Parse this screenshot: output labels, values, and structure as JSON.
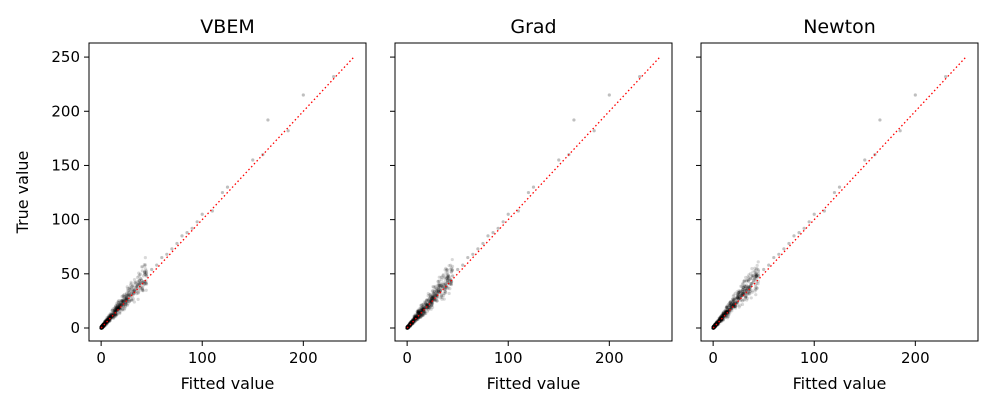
{
  "chart_data": [
    {
      "type": "scatter",
      "title": "VBEM",
      "xlabel": "Fitted value",
      "ylabel": "True value",
      "xlim": [
        -12,
        262
      ],
      "ylim": [
        -12,
        263
      ],
      "xticks": [
        0,
        100,
        200
      ],
      "yticks": [
        0,
        50,
        100,
        150,
        200,
        250
      ],
      "grid": false,
      "point_color": "#000000",
      "point_alpha": 0.15,
      "reference_line": {
        "style": "dotted",
        "color": "#ff0000",
        "from": [
          0,
          0
        ],
        "to": [
          250,
          250
        ]
      },
      "series": [
        {
          "x": [
            0.5,
            1,
            2,
            3,
            4,
            5,
            6,
            7,
            8,
            9,
            10,
            12,
            14,
            16,
            18,
            20,
            22,
            25,
            28,
            30,
            33,
            35,
            38,
            40,
            45,
            50,
            55,
            60,
            65,
            70,
            75,
            80,
            85,
            90,
            95,
            100,
            110,
            120,
            125,
            150,
            160,
            165,
            185,
            200,
            230
          ],
          "y": [
            0.5,
            1.5,
            2,
            3.5,
            5,
            6,
            7,
            8,
            9,
            10,
            11,
            13,
            15,
            17,
            19,
            21,
            23,
            27,
            30,
            32,
            35,
            38,
            41,
            44,
            48,
            54,
            58,
            65,
            68,
            73,
            78,
            85,
            88,
            92,
            98,
            105,
            108,
            125,
            130,
            155,
            160,
            192,
            182,
            215,
            232
          ]
        }
      ]
    },
    {
      "type": "scatter",
      "title": "Grad",
      "xlabel": "Fitted value",
      "ylabel": "",
      "xlim": [
        -12,
        262
      ],
      "ylim": [
        -12,
        263
      ],
      "xticks": [
        0,
        100,
        200
      ],
      "yticks": [
        0,
        50,
        100,
        150,
        200,
        250
      ],
      "grid": false,
      "point_color": "#000000",
      "point_alpha": 0.15,
      "reference_line": {
        "style": "dotted",
        "color": "#ff0000",
        "from": [
          0,
          0
        ],
        "to": [
          250,
          250
        ]
      },
      "series": [
        {
          "x": [
            0.5,
            1,
            2,
            3,
            4,
            5,
            6,
            7,
            8,
            9,
            10,
            12,
            14,
            16,
            18,
            20,
            22,
            25,
            28,
            30,
            33,
            35,
            38,
            40,
            45,
            50,
            55,
            60,
            65,
            70,
            75,
            80,
            85,
            90,
            95,
            100,
            110,
            120,
            125,
            150,
            160,
            165,
            185,
            200,
            230
          ],
          "y": [
            0.5,
            1.5,
            2,
            3.5,
            5,
            6,
            7,
            8,
            9,
            10,
            11,
            13,
            15,
            17,
            19,
            21,
            23,
            27,
            30,
            32,
            35,
            38,
            41,
            44,
            48,
            54,
            58,
            65,
            68,
            73,
            78,
            85,
            88,
            92,
            98,
            105,
            108,
            125,
            130,
            155,
            160,
            192,
            182,
            215,
            232
          ]
        }
      ]
    },
    {
      "type": "scatter",
      "title": "Newton",
      "xlabel": "Fitted value",
      "ylabel": "",
      "xlim": [
        -12,
        262
      ],
      "ylim": [
        -12,
        263
      ],
      "xticks": [
        0,
        100,
        200
      ],
      "yticks": [
        0,
        50,
        100,
        150,
        200,
        250
      ],
      "grid": false,
      "point_color": "#000000",
      "point_alpha": 0.15,
      "reference_line": {
        "style": "dotted",
        "color": "#ff0000",
        "from": [
          0,
          0
        ],
        "to": [
          250,
          250
        ]
      },
      "series": [
        {
          "x": [
            0.5,
            1,
            2,
            3,
            4,
            5,
            6,
            7,
            8,
            9,
            10,
            12,
            14,
            16,
            18,
            20,
            22,
            25,
            28,
            30,
            33,
            35,
            38,
            40,
            45,
            50,
            55,
            60,
            65,
            70,
            75,
            80,
            85,
            90,
            95,
            100,
            110,
            120,
            125,
            150,
            160,
            165,
            185,
            200,
            230
          ],
          "y": [
            0.5,
            1.5,
            2,
            3.5,
            5,
            6,
            7,
            8,
            9,
            10,
            11,
            13,
            15,
            17,
            19,
            21,
            23,
            27,
            30,
            32,
            35,
            38,
            41,
            44,
            48,
            54,
            58,
            65,
            68,
            73,
            78,
            85,
            88,
            92,
            98,
            105,
            108,
            125,
            130,
            155,
            160,
            192,
            182,
            215,
            232
          ]
        }
      ]
    }
  ]
}
